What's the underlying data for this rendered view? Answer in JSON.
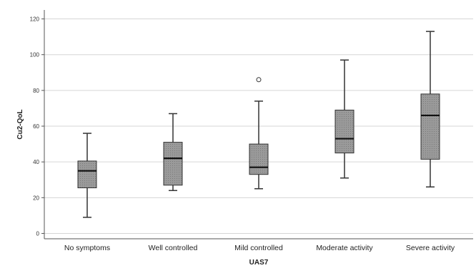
{
  "chart_data": {
    "type": "boxplot",
    "xlabel": "UAS7",
    "ylabel": "Cu2-QoL",
    "ylim": [
      -3,
      125
    ],
    "yticks": [
      0,
      20,
      40,
      60,
      80,
      100,
      120
    ],
    "ytick_labels": [
      "0",
      "20",
      "40",
      "60",
      "80",
      "100",
      "120"
    ],
    "grid": true,
    "categories": [
      "No symptoms",
      "Well controlled",
      "Mild controlled",
      "Moderate activity",
      "Severe activity"
    ],
    "boxes": [
      {
        "whisker_low": 9,
        "q1": 25.5,
        "median": 35,
        "q3": 40.5,
        "whisker_high": 56,
        "outliers": []
      },
      {
        "whisker_low": 24,
        "q1": 27,
        "median": 42,
        "q3": 51,
        "whisker_high": 67,
        "outliers": []
      },
      {
        "whisker_low": 25,
        "q1": 33,
        "median": 37,
        "q3": 50,
        "whisker_high": 74,
        "outliers": [
          86
        ]
      },
      {
        "whisker_low": 31,
        "q1": 45,
        "median": 53,
        "q3": 69,
        "whisker_high": 97,
        "outliers": []
      },
      {
        "whisker_low": 26,
        "q1": 41.5,
        "median": 66,
        "q3": 78,
        "whisker_high": 113,
        "outliers": []
      }
    ],
    "colors": {
      "box_fill": "#8f8f8f",
      "box_stroke": "#333333",
      "median": "#111111",
      "grid": "#d6d6d6",
      "axis": "#555555"
    }
  }
}
